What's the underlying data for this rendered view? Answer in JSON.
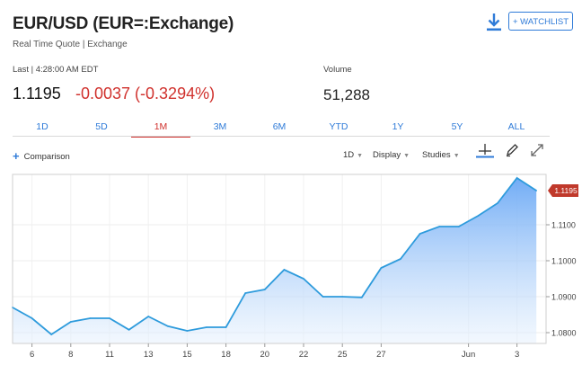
{
  "header": {
    "title": "EUR/USD (EUR=:Exchange)",
    "subtitle": "Real Time Quote | Exchange",
    "watchlist_label": "+ WATCHLIST",
    "download_icon": "download-icon"
  },
  "quote": {
    "last_label": "Last | 4:28:00 AM EDT",
    "price": "1.1195",
    "change": "-0.0037 (-0.3294%)",
    "volume_label": "Volume",
    "volume": "51,288"
  },
  "tabs": [
    {
      "label": "1D",
      "active": false
    },
    {
      "label": "5D",
      "active": false
    },
    {
      "label": "1M",
      "active": true
    },
    {
      "label": "3M",
      "active": false
    },
    {
      "label": "6M",
      "active": false
    },
    {
      "label": "YTD",
      "active": false
    },
    {
      "label": "1Y",
      "active": false
    },
    {
      "label": "5Y",
      "active": false
    },
    {
      "label": "ALL",
      "active": false
    }
  ],
  "toolbar": {
    "comparison_label": "Comparison",
    "interval_label": "1D",
    "display_label": "Display",
    "studies_label": "Studies",
    "icons": [
      "crosshair-icon",
      "pencil-icon",
      "expand-icon"
    ]
  },
  "colors": {
    "accent": "#2f7bd8",
    "negative": "#d0312d",
    "line": "#2e9bdc",
    "price_tag": "#c0392b"
  },
  "chart_data": {
    "type": "area",
    "x_tick_labels": [
      "6",
      "8",
      "11",
      "13",
      "15",
      "18",
      "20",
      "22",
      "25",
      "27",
      "Jun",
      "3"
    ],
    "y_ticks": [
      "1.0800",
      "1.0900",
      "1.1000",
      "1.1100"
    ],
    "ylim": [
      1.077,
      1.124
    ],
    "grid": true,
    "last_price_label": "1.1195",
    "series": [
      {
        "values": [
          1.087,
          1.084,
          1.0795,
          1.083,
          1.084,
          1.084,
          1.0808,
          1.0845,
          1.0818,
          1.0805,
          1.0815,
          1.0815,
          1.091,
          1.092,
          1.0975,
          1.095,
          1.09,
          1.09,
          1.0898,
          1.098,
          1.1005,
          1.1075,
          1.1095,
          1.1095,
          1.1125,
          1.116,
          1.123,
          1.1195
        ]
      }
    ]
  }
}
